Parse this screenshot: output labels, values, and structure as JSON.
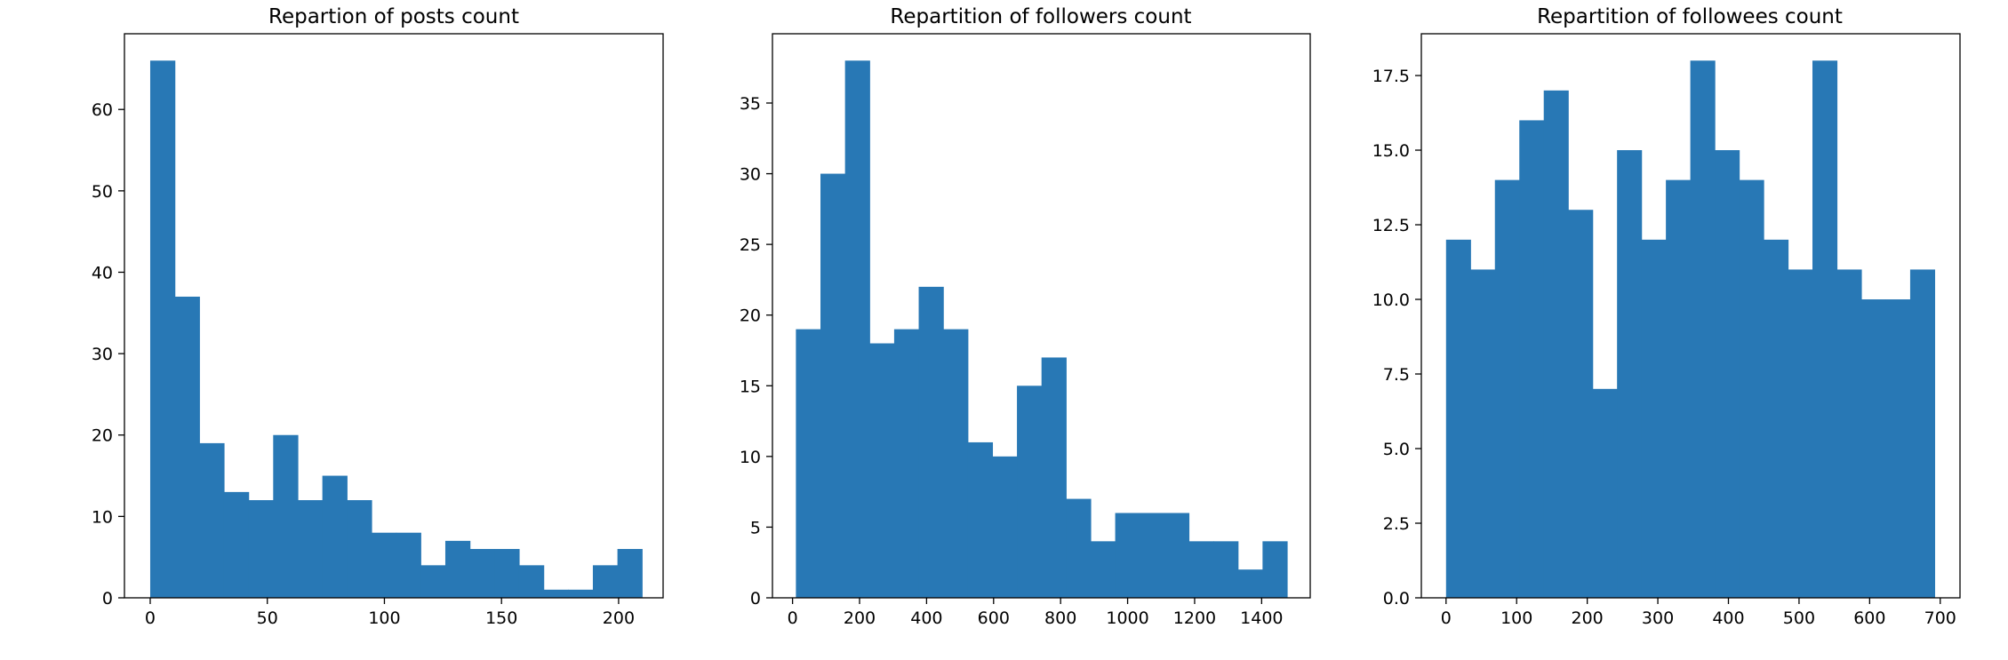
{
  "chart_data": [
    {
      "type": "bar",
      "title": "Repartion of posts count",
      "xlabel": "",
      "ylabel": "",
      "xlim": [
        -11,
        219
      ],
      "ylim": [
        0,
        69.3
      ],
      "grid": false,
      "color": "#2878b5",
      "bin_edges": [
        0,
        10.5,
        21,
        31.5,
        42,
        52.5,
        63,
        73.5,
        84,
        94.5,
        105,
        115.5,
        126,
        136.5,
        147,
        157.5,
        168,
        178.5,
        189,
        199.5,
        210
      ],
      "counts": [
        66,
        37,
        19,
        13,
        12,
        20,
        12,
        15,
        12,
        8,
        8,
        4,
        7,
        6,
        6,
        4,
        1,
        1,
        4,
        6
      ],
      "x_ticks": [
        "0",
        "50",
        "100",
        "150",
        "200"
      ],
      "x_tick_values": [
        0,
        50,
        100,
        150,
        200
      ],
      "y_ticks": [
        "0",
        "10",
        "20",
        "30",
        "40",
        "50",
        "60"
      ],
      "y_tick_values": [
        0,
        10,
        20,
        30,
        40,
        50,
        60
      ]
    },
    {
      "type": "bar",
      "title": "Repartition of followers count",
      "xlabel": "",
      "ylabel": "",
      "xlim": [
        -60,
        1545
      ],
      "ylim": [
        0,
        39.9
      ],
      "grid": false,
      "color": "#2878b5",
      "bin_edges": [
        10,
        83.3,
        156.6,
        229.9,
        303.2,
        376.5,
        449.8,
        523.1,
        596.4,
        669.7,
        743,
        816.3,
        889.6,
        962.9,
        1036.2,
        1109.5,
        1182.8,
        1256.1,
        1329.4,
        1402.7,
        1476
      ],
      "counts": [
        19,
        30,
        38,
        18,
        19,
        22,
        19,
        11,
        10,
        15,
        17,
        7,
        4,
        6,
        6,
        6,
        4,
        4,
        2,
        4
      ],
      "x_ticks": [
        "0",
        "200",
        "400",
        "600",
        "800",
        "1000",
        "1200",
        "1400"
      ],
      "x_tick_values": [
        0,
        200,
        400,
        600,
        800,
        1000,
        1200,
        1400
      ],
      "y_ticks": [
        "0",
        "5",
        "10",
        "15",
        "20",
        "25",
        "30",
        "35"
      ],
      "y_tick_values": [
        0,
        5,
        10,
        15,
        20,
        25,
        30,
        35
      ]
    },
    {
      "type": "bar",
      "title": "Repartition of followees count",
      "xlabel": "",
      "ylabel": "",
      "xlim": [
        -35,
        728
      ],
      "ylim": [
        0,
        18.9
      ],
      "grid": false,
      "color": "#2878b5",
      "bin_edges": [
        0,
        34.6,
        69.2,
        103.8,
        138.4,
        173,
        207.6,
        242.2,
        276.8,
        311.4,
        346,
        380.6,
        415.2,
        449.8,
        484.4,
        519,
        553.6,
        588.2,
        622.8,
        657.4,
        692
      ],
      "counts": [
        12,
        11,
        14,
        16,
        17,
        13,
        7,
        15,
        12,
        14,
        18,
        15,
        14,
        12,
        11,
        18,
        11,
        10,
        10,
        11
      ],
      "x_ticks": [
        "0",
        "100",
        "200",
        "300",
        "400",
        "500",
        "600",
        "700"
      ],
      "x_tick_values": [
        0,
        100,
        200,
        300,
        400,
        500,
        600,
        700
      ],
      "y_ticks": [
        "0.0",
        "2.5",
        "5.0",
        "7.5",
        "10.0",
        "12.5",
        "15.0",
        "17.5"
      ],
      "y_tick_values": [
        0,
        2.5,
        5,
        7.5,
        10,
        12.5,
        15,
        17.5
      ]
    }
  ]
}
